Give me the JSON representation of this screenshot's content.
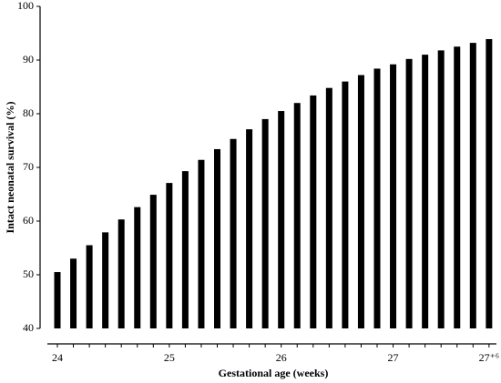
{
  "chart_data": {
    "type": "bar",
    "x_label": "Gestational age (weeks)",
    "y_label": "Intact neonatal survival (%)",
    "categories": [
      "24",
      null,
      null,
      null,
      null,
      null,
      null,
      "25",
      null,
      null,
      null,
      null,
      null,
      null,
      "26",
      null,
      null,
      null,
      null,
      null,
      null,
      "27",
      null,
      null,
      null,
      null,
      null,
      "27⁺⁶"
    ],
    "values": [
      50.5,
      53.0,
      55.5,
      57.9,
      60.3,
      62.6,
      64.9,
      67.1,
      69.3,
      71.4,
      73.4,
      75.3,
      77.1,
      79.0,
      80.5,
      82.0,
      83.4,
      84.8,
      86.0,
      87.2,
      88.4,
      89.2,
      90.2,
      91.0,
      91.8,
      92.5,
      93.2,
      93.9
    ],
    "color": "#000000",
    "ylim": [
      40,
      100
    ],
    "yticks": [
      40,
      50,
      60,
      70,
      80,
      90,
      100
    ]
  }
}
